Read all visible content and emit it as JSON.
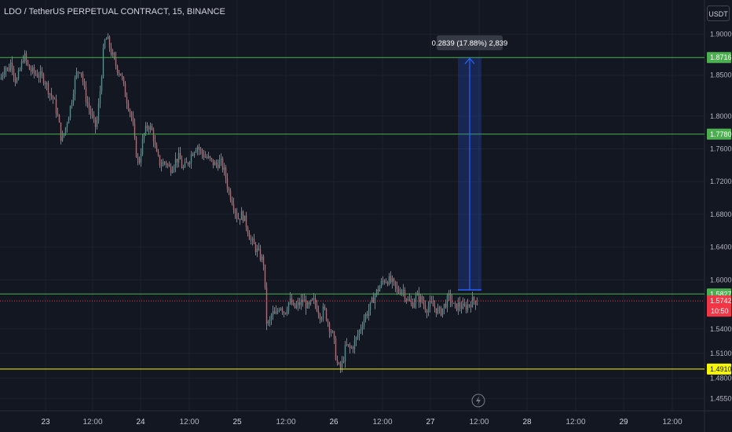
{
  "header": {
    "symbol_title": "LDO / TetherUS PERPETUAL CONTRACT, 15, BINANCE",
    "currency_button": "USDT"
  },
  "colors": {
    "background": "#131722",
    "up": "#26a69a",
    "down": "#ef5350",
    "level_green": "#4caf50",
    "level_yellow": "#f7f700",
    "measure_blue": "#2962ff"
  },
  "icons": {
    "replay": "lightning-icon"
  },
  "chart_data": {
    "type": "candlestick",
    "symbol": "LDO / TetherUS PERPETUAL CONTRACT",
    "interval": "15",
    "exchange": "BINANCE",
    "ylim": [
      1.44,
      1.915
    ],
    "yticks": [
      "1.9000",
      "1.8500",
      "1.8000",
      "1.7600",
      "1.7200",
      "1.6800",
      "1.6400",
      "1.6000",
      "1.5400",
      "1.5100",
      "1.4800",
      "1.4550"
    ],
    "ytick_values": [
      1.9,
      1.85,
      1.8,
      1.76,
      1.72,
      1.68,
      1.64,
      1.6,
      1.54,
      1.51,
      1.48,
      1.455
    ],
    "xticks": [
      {
        "label": "23",
        "day": true
      },
      {
        "label": "12:00",
        "day": false
      },
      {
        "label": "24",
        "day": true
      },
      {
        "label": "12:00",
        "day": false
      },
      {
        "label": "25",
        "day": true
      },
      {
        "label": "12:00",
        "day": false
      },
      {
        "label": "26",
        "day": true
      },
      {
        "label": "12:00",
        "day": false
      },
      {
        "label": "27",
        "day": true
      },
      {
        "label": "12:00",
        "day": false
      },
      {
        "label": "28",
        "day": true
      },
      {
        "label": "12:00",
        "day": false
      },
      {
        "label": "29",
        "day": true
      },
      {
        "label": "12:00",
        "day": false
      }
    ],
    "price_path": [
      [
        0,
        1.845
      ],
      [
        6,
        1.862
      ],
      [
        10,
        1.855
      ],
      [
        14,
        1.868
      ],
      [
        20,
        1.84
      ],
      [
        26,
        1.86
      ],
      [
        30,
        1.875
      ],
      [
        36,
        1.858
      ],
      [
        44,
        1.852
      ],
      [
        50,
        1.85
      ],
      [
        56,
        1.845
      ],
      [
        62,
        1.83
      ],
      [
        68,
        1.82
      ],
      [
        74,
        1.795
      ],
      [
        78,
        1.768
      ],
      [
        84,
        1.79
      ],
      [
        90,
        1.815
      ],
      [
        96,
        1.85
      ],
      [
        102,
        1.86
      ],
      [
        108,
        1.825
      ],
      [
        116,
        1.8
      ],
      [
        122,
        1.785
      ],
      [
        128,
        1.84
      ],
      [
        132,
        1.89
      ],
      [
        136,
        1.895
      ],
      [
        142,
        1.875
      ],
      [
        148,
        1.86
      ],
      [
        154,
        1.85
      ],
      [
        158,
        1.83
      ],
      [
        164,
        1.81
      ],
      [
        168,
        1.795
      ],
      [
        172,
        1.76
      ],
      [
        176,
        1.74
      ],
      [
        182,
        1.775
      ],
      [
        188,
        1.79
      ],
      [
        194,
        1.78
      ],
      [
        198,
        1.755
      ],
      [
        204,
        1.74
      ],
      [
        210,
        1.745
      ],
      [
        216,
        1.735
      ],
      [
        222,
        1.745
      ],
      [
        228,
        1.75
      ],
      [
        232,
        1.735
      ],
      [
        238,
        1.742
      ],
      [
        244,
        1.755
      ],
      [
        250,
        1.765
      ],
      [
        256,
        1.755
      ],
      [
        262,
        1.75
      ],
      [
        268,
        1.745
      ],
      [
        274,
        1.74
      ],
      [
        280,
        1.745
      ],
      [
        286,
        1.73
      ],
      [
        290,
        1.71
      ],
      [
        296,
        1.695
      ],
      [
        302,
        1.675
      ],
      [
        308,
        1.68
      ],
      [
        314,
        1.665
      ],
      [
        318,
        1.65
      ],
      [
        324,
        1.64
      ],
      [
        330,
        1.63
      ],
      [
        336,
        1.62
      ],
      [
        338,
        1.55
      ],
      [
        342,
        1.545
      ],
      [
        346,
        1.56
      ],
      [
        350,
        1.555
      ],
      [
        356,
        1.57
      ],
      [
        362,
        1.56
      ],
      [
        368,
        1.575
      ],
      [
        374,
        1.565
      ],
      [
        380,
        1.57
      ],
      [
        386,
        1.575
      ],
      [
        392,
        1.565
      ],
      [
        398,
        1.575
      ],
      [
        404,
        1.565
      ],
      [
        408,
        1.555
      ],
      [
        412,
        1.565
      ],
      [
        418,
        1.545
      ],
      [
        424,
        1.53
      ],
      [
        428,
        1.5
      ],
      [
        432,
        1.49
      ],
      [
        436,
        1.5
      ],
      [
        440,
        1.52
      ],
      [
        446,
        1.515
      ],
      [
        452,
        1.525
      ],
      [
        458,
        1.54
      ],
      [
        464,
        1.555
      ],
      [
        470,
        1.565
      ],
      [
        476,
        1.58
      ],
      [
        482,
        1.59
      ],
      [
        488,
        1.6
      ],
      [
        494,
        1.6
      ],
      [
        500,
        1.595
      ],
      [
        506,
        1.585
      ],
      [
        512,
        1.59
      ],
      [
        518,
        1.575
      ],
      [
        524,
        1.57
      ],
      [
        530,
        1.58
      ],
      [
        536,
        1.575
      ],
      [
        542,
        1.565
      ],
      [
        548,
        1.57
      ],
      [
        554,
        1.565
      ],
      [
        560,
        1.56
      ],
      [
        566,
        1.57
      ],
      [
        572,
        1.58
      ],
      [
        578,
        1.565
      ],
      [
        584,
        1.57
      ],
      [
        590,
        1.565
      ],
      [
        596,
        1.57
      ],
      [
        602,
        1.575
      ],
      [
        608,
        1.574
      ]
    ],
    "levels": [
      {
        "price": 1.8716,
        "label": "1.8716",
        "color": "#4caf50",
        "text_color": "#ffffff"
      },
      {
        "price": 1.778,
        "label": "1.7780",
        "color": "#4caf50",
        "text_color": "#ffffff"
      },
      {
        "price": 1.5827,
        "label": "1.5827",
        "color": "#4caf50",
        "text_color": "#ffffff"
      },
      {
        "price": 1.491,
        "label": "1.4910",
        "color": "#f7f700",
        "text_color": "#131722"
      }
    ],
    "last_price": {
      "label": "1.5742",
      "countdown": "10:50",
      "color": "#f23645",
      "price": 1.5742
    },
    "measure": {
      "label": "0.2839 (17.88%) 2,839",
      "from_price": 1.5877,
      "to_price": 1.8716
    }
  }
}
